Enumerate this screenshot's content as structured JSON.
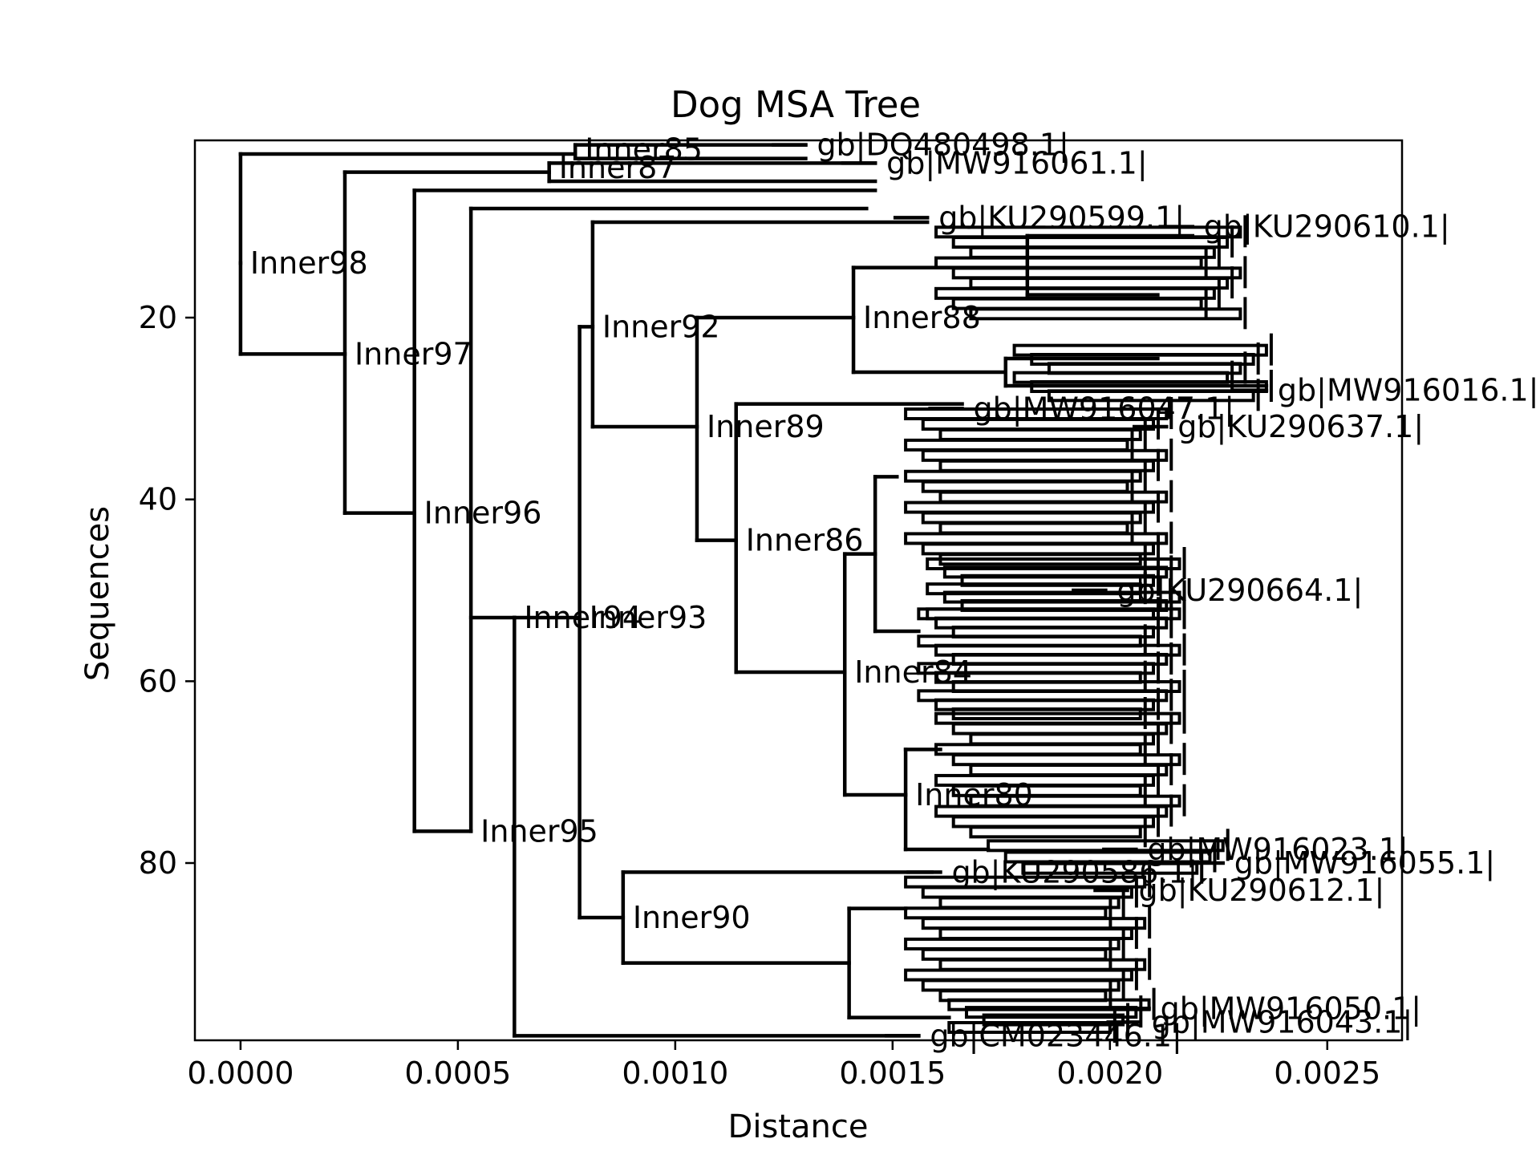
{
  "chart_data": {
    "type": "dendrogram",
    "title": "Dog MSA Tree",
    "xlabel": "Distance",
    "ylabel": "Sequences",
    "xlim": [
      -0.000105,
      0.002672
    ],
    "ylim": [
      99.5,
      0.5
    ],
    "x_ticks": [
      "0.0000",
      "0.0005",
      "0.0010",
      "0.0015",
      "0.0020",
      "0.0025"
    ],
    "x_tick_values": [
      0,
      0.0005,
      0.001,
      0.0015,
      0.002,
      0.0025
    ],
    "y_ticks": [
      "20",
      "40",
      "60",
      "80"
    ],
    "y_tick_values": [
      20,
      40,
      60,
      80
    ],
    "grid": false,
    "internal_nodes": [
      {
        "name": "Inner98",
        "x": 0.0,
        "y": 14.0,
        "y_top": 2.0,
        "y_bottom": 24.0
      },
      {
        "name": "Inner97",
        "x": 0.00024,
        "y": 24.0,
        "y_top": 4.0,
        "y_bottom": 41.5
      },
      {
        "name": "Inner96",
        "x": 0.0004,
        "y": 41.5,
        "y_top": 6.0,
        "y_bottom": 76.5
      },
      {
        "name": "Inner95",
        "x": 0.00053,
        "y": 76.5,
        "y_top": 8.0,
        "y_bottom": 53.0
      },
      {
        "name": "Inner94",
        "x": 0.00063,
        "y": 53.0,
        "y_top": 99.0,
        "y_bottom": 99.0
      },
      {
        "name": "Inner93",
        "x": 0.00078,
        "y": 53.0,
        "y_top": 21.0,
        "y_bottom": 86.0
      },
      {
        "name": "Inner92",
        "x": 0.00081,
        "y": 21.0,
        "y_top": 9.5,
        "y_bottom": 32.0
      },
      {
        "name": "Inner89",
        "x": 0.00105,
        "y": 32.0,
        "y_top": 20.0,
        "y_bottom": 44.5
      },
      {
        "name": "Inner88",
        "x": 0.00141,
        "y": 20.0,
        "y_top": 14.5,
        "y_bottom": 26.0
      },
      {
        "name": "Inner86",
        "x": 0.00114,
        "y": 44.5,
        "y_top": 29.5,
        "y_bottom": 59.0
      },
      {
        "name": "Inner84",
        "x": 0.00139,
        "y": 59.0,
        "y_top": 46.0,
        "y_bottom": 72.5
      },
      {
        "name": "Inner90",
        "x": 0.00088,
        "y": 86.0,
        "y_top": 81.0,
        "y_bottom": 91.0
      },
      {
        "name": "Inner87",
        "x": 0.00071,
        "y": 3.5
      },
      {
        "name": "Inner85",
        "x": 0.00077,
        "y": 1.5
      },
      {
        "name": "Inner80",
        "x": 0.00153,
        "y": 72.5
      }
    ],
    "leaves": [
      {
        "name": "gb|DQ480498.1|",
        "x": 0.0013,
        "y": 1.0
      },
      {
        "name": "gb|MW916061.1|",
        "x": 0.00146,
        "y": 3.0
      },
      {
        "name": "gb|KU290599.1|",
        "x": 0.00158,
        "y": 9.0
      },
      {
        "name": "gb|KU290610.1|",
        "x": 0.00219,
        "y": 10.0
      },
      {
        "name": "gb|MW916016.1|",
        "x": 0.00236,
        "y": 28.0
      },
      {
        "name": "gb|MW916047.1|",
        "x": 0.00166,
        "y": 30.0
      },
      {
        "name": "gb|KU290637.1|",
        "x": 0.00213,
        "y": 32.0
      },
      {
        "name": "gb|KU290664.1|",
        "x": 0.00199,
        "y": 50.0
      },
      {
        "name": "gb|MW916023.1|",
        "x": 0.00206,
        "y": 78.5
      },
      {
        "name": "gb|MW916055.1|",
        "x": 0.00226,
        "y": 80.0
      },
      {
        "name": "gb|KU290586.1|",
        "x": 0.00161,
        "y": 81.0
      },
      {
        "name": "gb|KU290612.1|",
        "x": 0.00204,
        "y": 83.0
      },
      {
        "name": "gb|MW916050.1|",
        "x": 0.00209,
        "y": 96.0
      },
      {
        "name": "gb|MW916043.1|",
        "x": 0.00207,
        "y": 97.5
      },
      {
        "name": "gb|CM023446.1|",
        "x": 0.00156,
        "y": 99.0
      }
    ]
  }
}
